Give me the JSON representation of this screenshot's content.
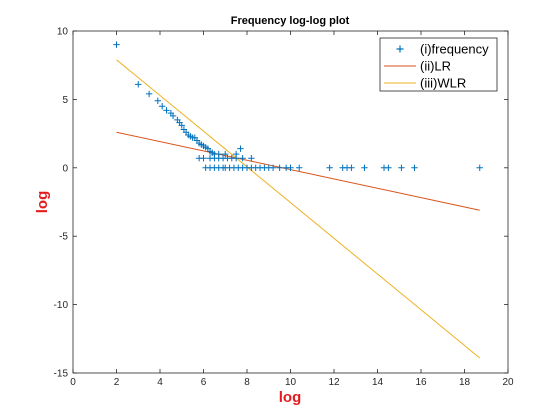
{
  "chart_data": {
    "type": "scatter",
    "title": "Frequency log-log plot",
    "xlabel": "log",
    "ylabel": "log",
    "label_color": "#e41a1c",
    "xlim": [
      0,
      20
    ],
    "ylim": [
      -15,
      10
    ],
    "xticks": [
      0,
      2,
      4,
      6,
      8,
      10,
      12,
      14,
      16,
      18,
      20
    ],
    "yticks": [
      -15,
      -10,
      -5,
      0,
      5,
      10
    ],
    "grid": false,
    "legend_position": "top-right",
    "series": [
      {
        "name": "(i)frequency",
        "kind": "marker",
        "marker": "+",
        "color": "#0072bd",
        "points": [
          [
            2.0,
            9.0
          ],
          [
            3.0,
            6.1
          ],
          [
            3.5,
            5.4
          ],
          [
            3.9,
            4.9
          ],
          [
            4.1,
            4.5
          ],
          [
            4.3,
            4.2
          ],
          [
            4.5,
            4.0
          ],
          [
            4.6,
            3.8
          ],
          [
            4.8,
            3.5
          ],
          [
            4.9,
            3.3
          ],
          [
            5.0,
            3.1
          ],
          [
            5.1,
            2.8
          ],
          [
            5.2,
            2.6
          ],
          [
            5.3,
            2.4
          ],
          [
            5.4,
            2.3
          ],
          [
            5.5,
            2.2
          ],
          [
            5.6,
            2.2
          ],
          [
            5.7,
            2.0
          ],
          [
            5.8,
            1.8
          ],
          [
            5.9,
            1.7
          ],
          [
            6.0,
            1.6
          ],
          [
            6.1,
            1.5
          ],
          [
            6.2,
            1.4
          ],
          [
            6.3,
            1.2
          ],
          [
            6.4,
            1.1
          ],
          [
            6.5,
            1.0
          ],
          [
            6.7,
            1.0
          ],
          [
            7.0,
            1.0
          ],
          [
            7.5,
            1.0
          ],
          [
            7.7,
            1.4
          ],
          [
            5.8,
            0.7
          ],
          [
            6.0,
            0.7
          ],
          [
            6.3,
            0.7
          ],
          [
            6.5,
            0.7
          ],
          [
            6.7,
            0.7
          ],
          [
            6.9,
            0.7
          ],
          [
            7.1,
            0.7
          ],
          [
            7.3,
            0.7
          ],
          [
            7.5,
            0.7
          ],
          [
            7.8,
            0.7
          ],
          [
            8.2,
            0.7
          ],
          [
            6.1,
            0.0
          ],
          [
            6.3,
            0.0
          ],
          [
            6.5,
            0.0
          ],
          [
            6.7,
            0.0
          ],
          [
            6.9,
            0.0
          ],
          [
            7.0,
            0.0
          ],
          [
            7.2,
            0.0
          ],
          [
            7.4,
            0.0
          ],
          [
            7.6,
            0.0
          ],
          [
            7.8,
            0.0
          ],
          [
            8.0,
            0.0
          ],
          [
            8.2,
            0.0
          ],
          [
            8.4,
            0.0
          ],
          [
            8.6,
            0.0
          ],
          [
            8.8,
            0.0
          ],
          [
            9.0,
            0.0
          ],
          [
            9.2,
            0.0
          ],
          [
            9.5,
            0.0
          ],
          [
            9.8,
            0.0
          ],
          [
            10.0,
            0.0
          ],
          [
            10.4,
            0.0
          ],
          [
            11.8,
            0.0
          ],
          [
            12.4,
            0.0
          ],
          [
            12.6,
            0.0
          ],
          [
            12.8,
            0.0
          ],
          [
            13.4,
            0.0
          ],
          [
            14.3,
            0.0
          ],
          [
            14.5,
            0.0
          ],
          [
            15.1,
            0.0
          ],
          [
            15.7,
            0.0
          ],
          [
            18.7,
            0.0
          ]
        ]
      },
      {
        "name": "(ii)LR",
        "kind": "line",
        "color": "#d95319",
        "points": [
          [
            2.0,
            2.6
          ],
          [
            18.7,
            -3.1
          ]
        ]
      },
      {
        "name": "(iii)WLR",
        "kind": "line",
        "color": "#edb120",
        "points": [
          [
            2.0,
            7.9
          ],
          [
            18.7,
            -13.9
          ]
        ]
      }
    ]
  }
}
